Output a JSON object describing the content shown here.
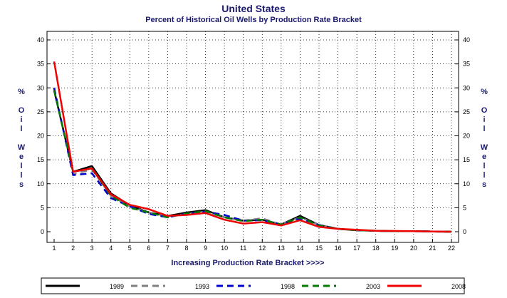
{
  "chart_data": {
    "type": "line",
    "title": "United States",
    "subtitle": "Percent of Historical Oil Wells by Production Rate Bracket",
    "xlabel": "Increasing Production Rate Bracket >>>>",
    "ylabel_chars": [
      "%",
      "O",
      "i",
      "l",
      "W",
      "e",
      "l",
      "l",
      "s"
    ],
    "x": [
      1,
      2,
      3,
      4,
      5,
      6,
      7,
      8,
      9,
      10,
      11,
      12,
      13,
      14,
      15,
      16,
      17,
      18,
      19,
      20,
      21,
      22
    ],
    "xlim": [
      1,
      22
    ],
    "ylim": [
      0,
      40
    ],
    "yticks": [
      0,
      5,
      10,
      15,
      20,
      25,
      30,
      35,
      40
    ],
    "grid": true,
    "legend_position": "bottom",
    "series": [
      {
        "name": "1989",
        "color": "#000000",
        "dash": "solid",
        "values": [
          29.5,
          12.5,
          13.7,
          8.0,
          5.5,
          4.0,
          3.3,
          4.0,
          4.5,
          3.0,
          2.3,
          2.5,
          1.5,
          3.3,
          1.4,
          0.6,
          0.3,
          0.2,
          0.1,
          0.1,
          0.05,
          0.0
        ]
      },
      {
        "name": "1993",
        "color": "#808080",
        "dash": "dashed",
        "values": [
          30.0,
          12.0,
          13.0,
          7.5,
          5.3,
          4.0,
          3.2,
          3.7,
          4.2,
          3.0,
          2.3,
          2.8,
          1.5,
          3.0,
          1.4,
          0.6,
          0.3,
          0.2,
          0.1,
          0.1,
          0.05,
          0.0
        ]
      },
      {
        "name": "1998",
        "color": "#0000cc",
        "dash": "dashed",
        "values": [
          30.0,
          11.8,
          12.2,
          7.0,
          5.3,
          3.7,
          3.0,
          3.8,
          4.2,
          3.5,
          2.3,
          2.4,
          1.5,
          2.8,
          1.4,
          0.6,
          0.3,
          0.2,
          0.1,
          0.1,
          0.05,
          0.0
        ]
      },
      {
        "name": "2003",
        "color": "#007a00",
        "dash": "dashed",
        "values": [
          29.5,
          12.5,
          13.2,
          7.5,
          5.0,
          4.0,
          3.0,
          3.8,
          4.3,
          3.0,
          2.2,
          2.5,
          1.5,
          3.0,
          1.3,
          0.6,
          0.3,
          0.2,
          0.1,
          0.1,
          0.05,
          0.0
        ]
      },
      {
        "name": "2008",
        "color": "#ee0000",
        "dash": "solid",
        "values": [
          35.5,
          12.5,
          13.2,
          7.8,
          5.6,
          4.7,
          3.3,
          3.5,
          3.9,
          2.5,
          1.7,
          2.0,
          1.3,
          2.4,
          1.0,
          0.6,
          0.4,
          0.2,
          0.15,
          0.1,
          0.05,
          0.0
        ]
      }
    ]
  }
}
